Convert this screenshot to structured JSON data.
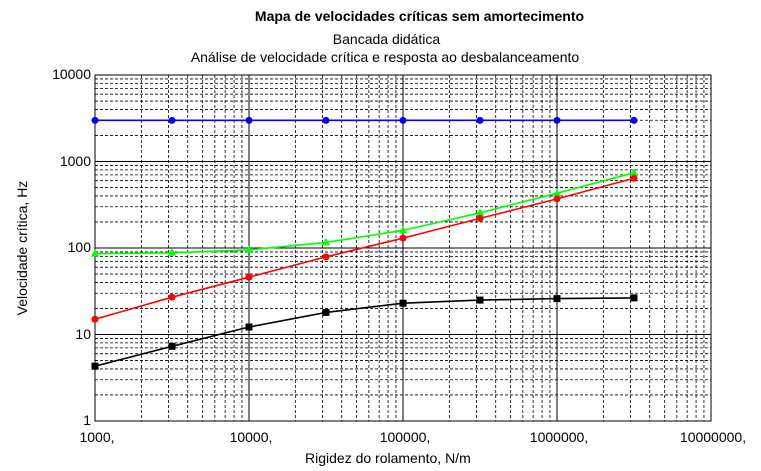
{
  "chart_data": {
    "type": "line",
    "title": "Mapa de velocidades críticas sem amortecimento",
    "subtitle": [
      "Bancada didática",
      "Análise de velocidade crítica e resposta ao desbalanceamento"
    ],
    "xlabel": "Rigidez do rolamento, N/m",
    "ylabel": "Velocidade crítica, Hz",
    "xscale": "log",
    "yscale": "log",
    "xlim": [
      1000,
      10000000
    ],
    "ylim": [
      1,
      10000
    ],
    "grid": true,
    "x_tick_labels": [
      "1000,",
      "10000,",
      "100000,",
      "1000000,",
      "10000000,"
    ],
    "y_tick_labels": [
      "10000",
      "1000",
      "100",
      "10",
      "1"
    ],
    "x": [
      1000,
      3162,
      10000,
      31623,
      100000,
      316228,
      1000000,
      3162278
    ],
    "series": [
      {
        "color": "#0000ff",
        "marker": "circle",
        "values": [
          2990,
          2990,
          2990,
          2990,
          2990,
          2990,
          2990,
          2990
        ]
      },
      {
        "color": "#00ff00",
        "marker": "triangle",
        "values": [
          86,
          88,
          95,
          116,
          160,
          255,
          430,
          740
        ]
      },
      {
        "color": "#ff0000",
        "marker": "circle",
        "values": [
          15,
          27,
          46,
          79,
          130,
          220,
          370,
          640
        ]
      },
      {
        "color": "#000000",
        "marker": "square",
        "values": [
          4.3,
          7.3,
          12.2,
          18,
          23,
          25,
          26,
          26.5
        ]
      }
    ]
  }
}
